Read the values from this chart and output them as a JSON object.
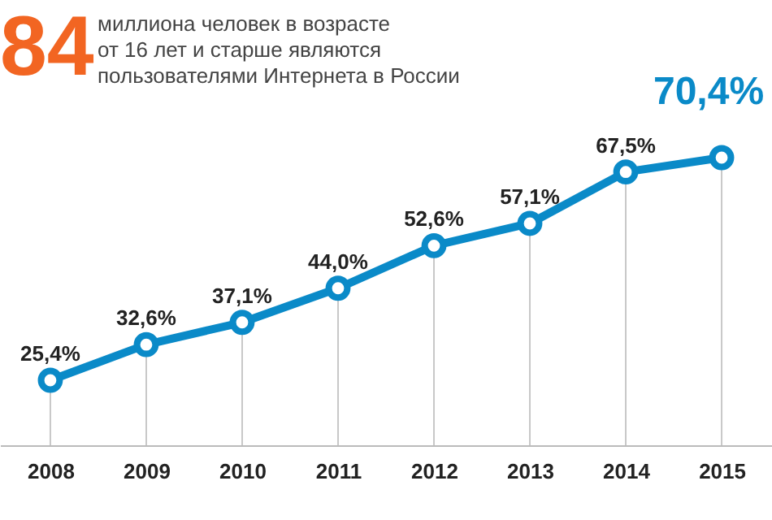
{
  "chart_data": {
    "type": "line",
    "title": "84",
    "subtitle": [
      "миллиона человек в возрасте",
      "от 16 лет и старше являются",
      "пользователями Интернета в России"
    ],
    "categories": [
      "2008",
      "2009",
      "2010",
      "2011",
      "2012",
      "2013",
      "2014",
      "2015"
    ],
    "series": [
      {
        "color": "#0a8ac8",
        "values": [
          25.4,
          32.6,
          37.1,
          44.0,
          52.6,
          57.1,
          67.5,
          70.4
        ],
        "value_labels": [
          "25,4%",
          "32,6%",
          "37,1%",
          "44,0%",
          "52,6%",
          "57,1%",
          "67,5%",
          "70,4%"
        ]
      }
    ],
    "tick_labels": "x",
    "marker": "circle",
    "line_style": "solid",
    "grid": "x"
  }
}
